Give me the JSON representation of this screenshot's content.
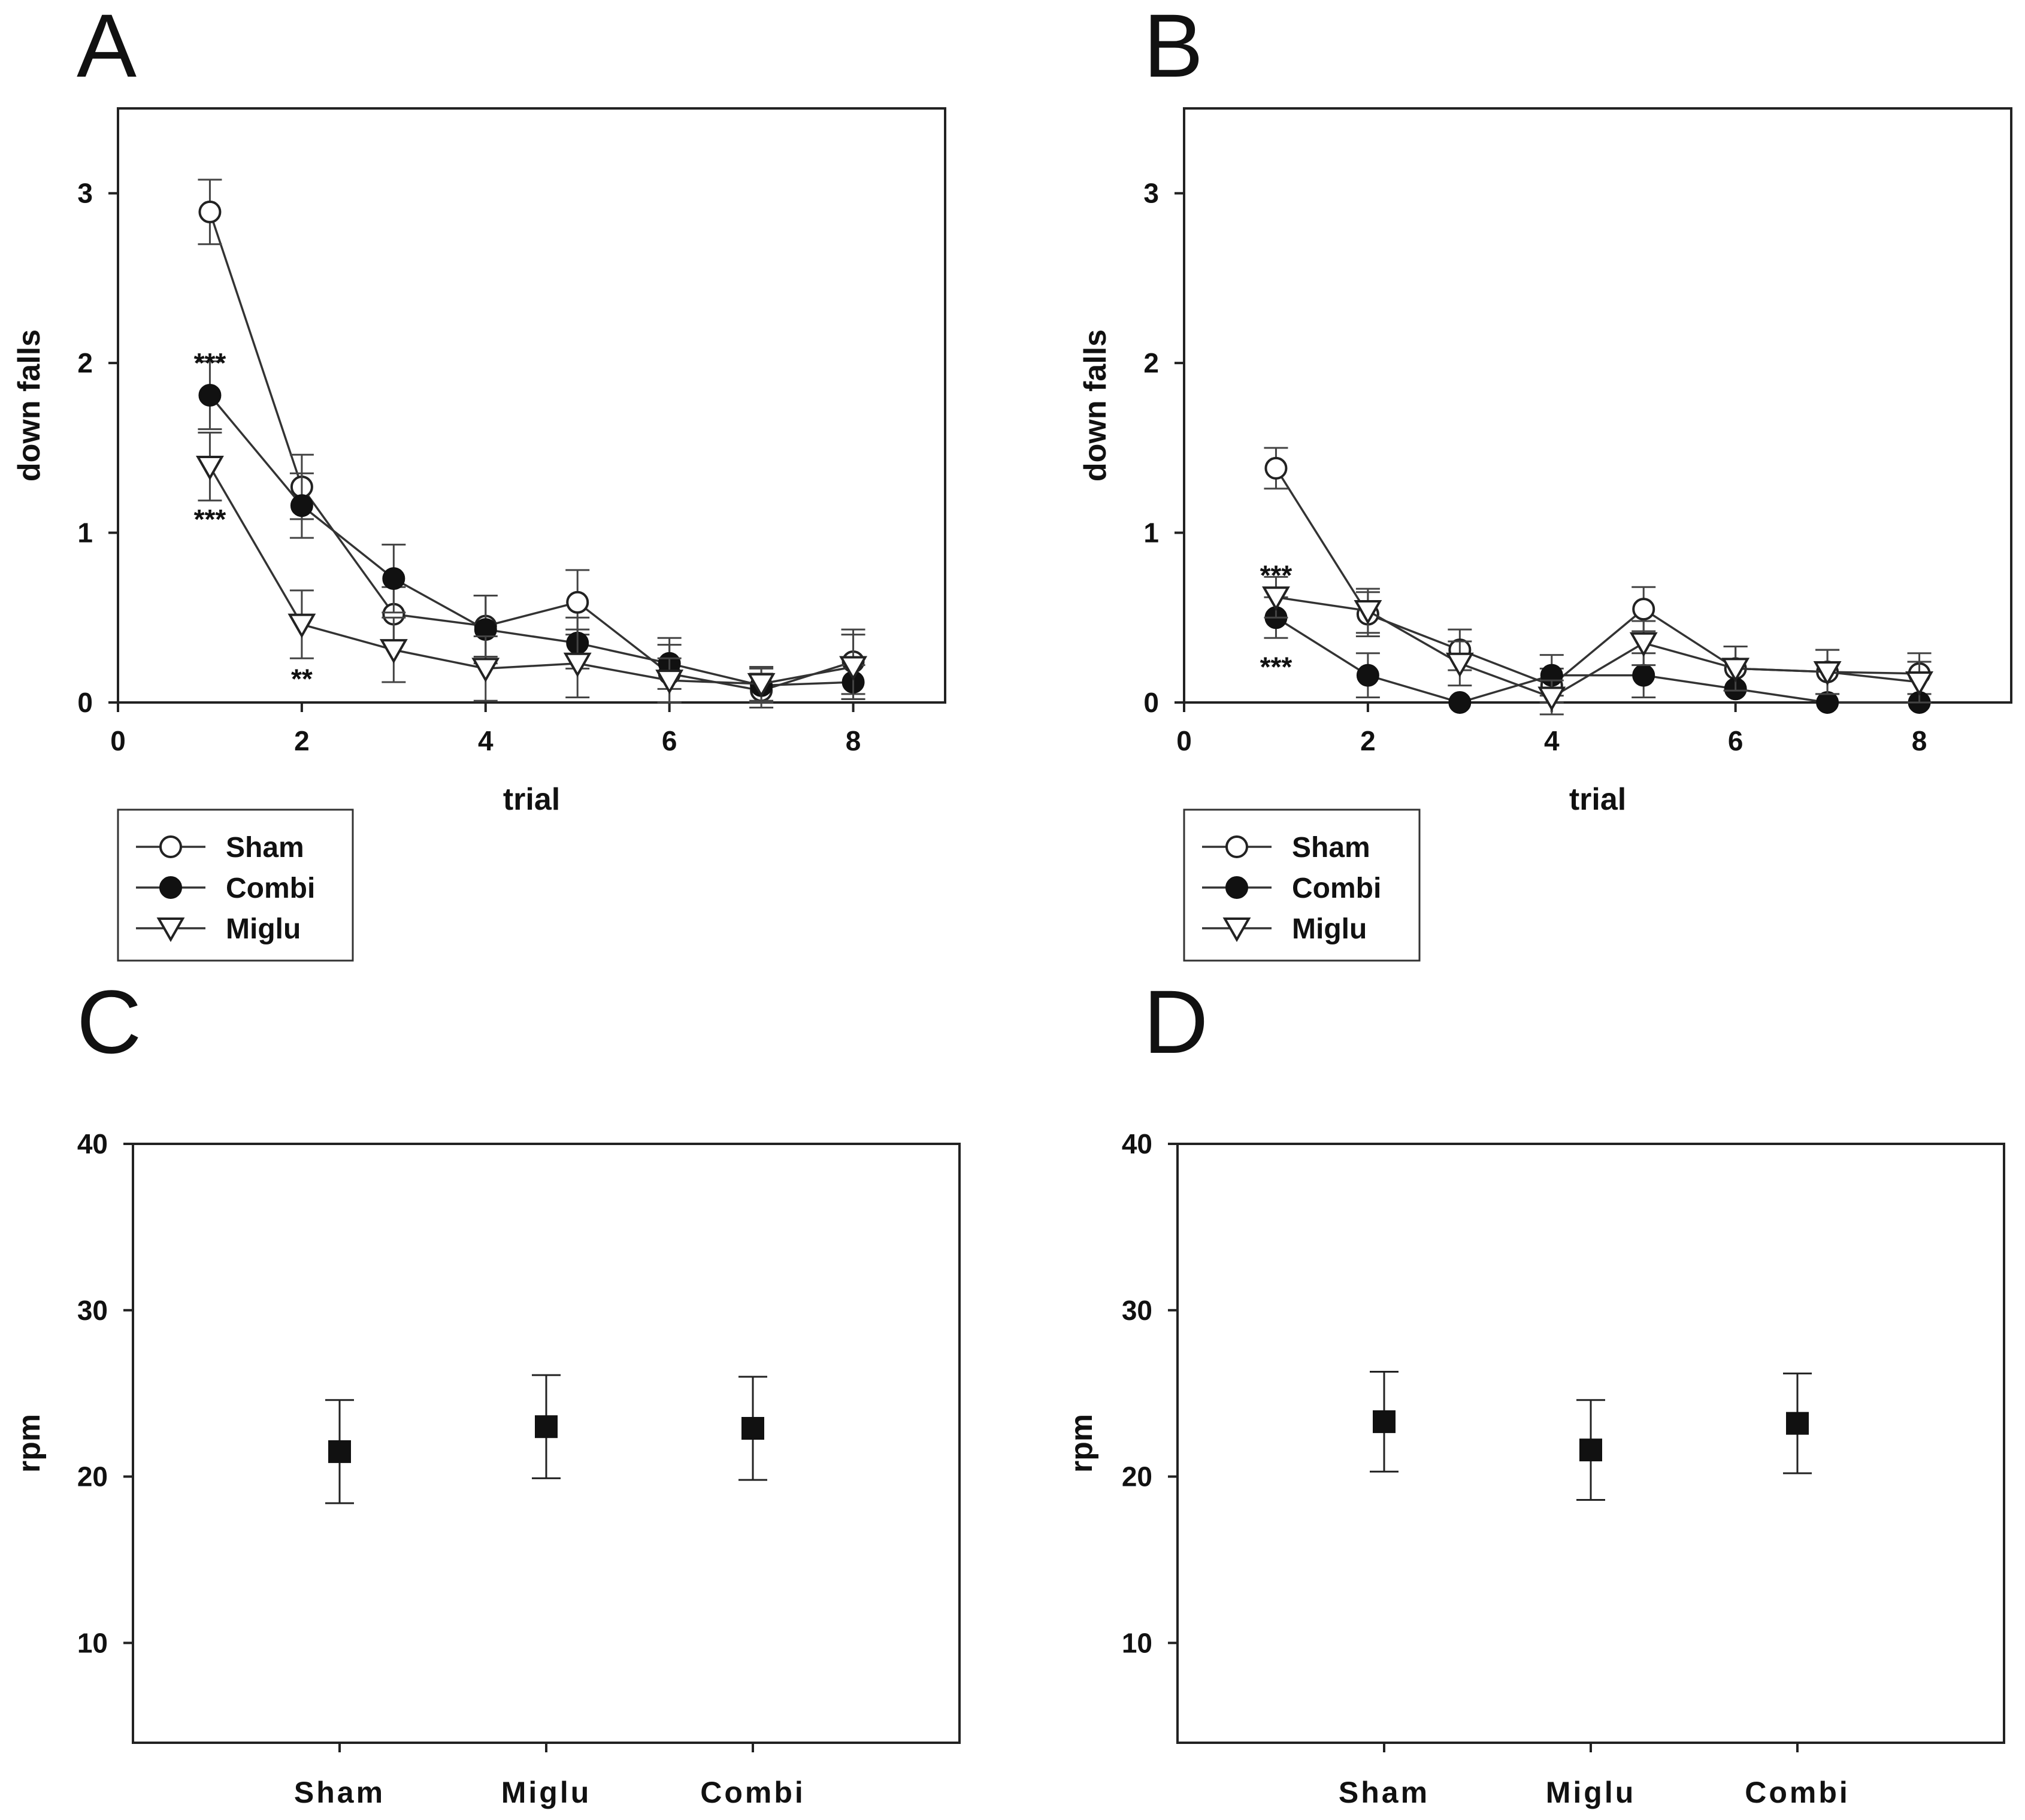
{
  "chart_data": [
    {
      "panel": "A",
      "type": "line",
      "xlabel": "trial",
      "ylabel": "down falls",
      "xlim": [
        0,
        9
      ],
      "ylim": [
        0,
        3.5
      ],
      "xticks": [
        0,
        2,
        4,
        6,
        8
      ],
      "yticks": [
        0,
        1,
        2,
        3
      ],
      "x": [
        1,
        2,
        3,
        4,
        5,
        6,
        7,
        8
      ],
      "series": [
        {
          "name": "Sham",
          "marker": "open-circle",
          "values": [
            2.89,
            1.27,
            0.52,
            0.45,
            0.59,
            0.17,
            0.07,
            0.24
          ],
          "errors": [
            0.19,
            0.19,
            0.16,
            0.18,
            0.19,
            0.17,
            0.1,
            0.19
          ]
        },
        {
          "name": "Combi",
          "marker": "filled-circle",
          "values": [
            1.81,
            1.16,
            0.73,
            0.43,
            0.35,
            0.23,
            0.1,
            0.12
          ],
          "errors": [
            0.2,
            0.19,
            0.2,
            0.2,
            0.15,
            0.15,
            0.1,
            0.1
          ]
        },
        {
          "name": "Miglu",
          "marker": "open-triangle-down",
          "values": [
            1.39,
            0.46,
            0.31,
            0.2,
            0.23,
            0.13,
            0.11,
            0.21
          ],
          "errors": [
            0.2,
            0.2,
            0.19,
            0.19,
            0.2,
            0.13,
            0.1,
            0.19
          ]
        }
      ],
      "annotations": [
        {
          "text": "***",
          "x": 1,
          "y": 2.0
        },
        {
          "text": "***",
          "x": 1,
          "y": 1.08
        },
        {
          "text": "**",
          "x": 2,
          "y": 0.14
        }
      ]
    },
    {
      "panel": "B",
      "type": "line",
      "xlabel": "trial",
      "ylabel": "down falls",
      "xlim": [
        0,
        9
      ],
      "ylim": [
        0,
        3.5
      ],
      "xticks": [
        0,
        2,
        4,
        6,
        8
      ],
      "yticks": [
        0,
        1,
        2,
        3
      ],
      "x": [
        1,
        2,
        3,
        4,
        5,
        6,
        7,
        8
      ],
      "series": [
        {
          "name": "Sham",
          "marker": "open-circle",
          "values": [
            1.38,
            0.52,
            0.31,
            0.1,
            0.55,
            0.2,
            0.18,
            0.17
          ],
          "errors": [
            0.12,
            0.13,
            0.12,
            0.1,
            0.13,
            0.13,
            0.13,
            0.12
          ]
        },
        {
          "name": "Combi",
          "marker": "filled-circle",
          "values": [
            0.5,
            0.16,
            0.0,
            0.16,
            0.16,
            0.08,
            0.0,
            0.0
          ],
          "errors": [
            0.12,
            0.13,
            0.0,
            0.12,
            0.13,
            0.0,
            0.0,
            0.0
          ]
        },
        {
          "name": "Miglu",
          "marker": "open-triangle-down",
          "values": [
            0.62,
            0.54,
            0.23,
            0.03,
            0.35,
            0.2,
            0.18,
            0.12
          ],
          "errors": [
            0.12,
            0.13,
            0.13,
            0.1,
            0.13,
            0.13,
            0.13,
            0.12
          ]
        }
      ],
      "annotations": [
        {
          "text": "***",
          "x": 1,
          "y": 0.75
        },
        {
          "text": "***",
          "x": 1,
          "y": 0.21
        }
      ]
    },
    {
      "panel": "C",
      "type": "scatter",
      "xlabel": "",
      "ylabel": "rpm",
      "ylim": [
        4,
        40
      ],
      "yticks": [
        10,
        20,
        30,
        40
      ],
      "categories": [
        "Sham",
        "Miglu",
        "Combi"
      ],
      "values": [
        21.5,
        23.0,
        22.9
      ],
      "errors": [
        3.1,
        3.1,
        3.1
      ]
    },
    {
      "panel": "D",
      "type": "scatter",
      "xlabel": "",
      "ylabel": "rpm",
      "ylim": [
        4,
        40
      ],
      "yticks": [
        10,
        20,
        30,
        40
      ],
      "categories": [
        "Sham",
        "Miglu",
        "Combi"
      ],
      "values": [
        23.3,
        21.6,
        23.2
      ],
      "errors": [
        3.0,
        3.0,
        3.0
      ]
    }
  ]
}
